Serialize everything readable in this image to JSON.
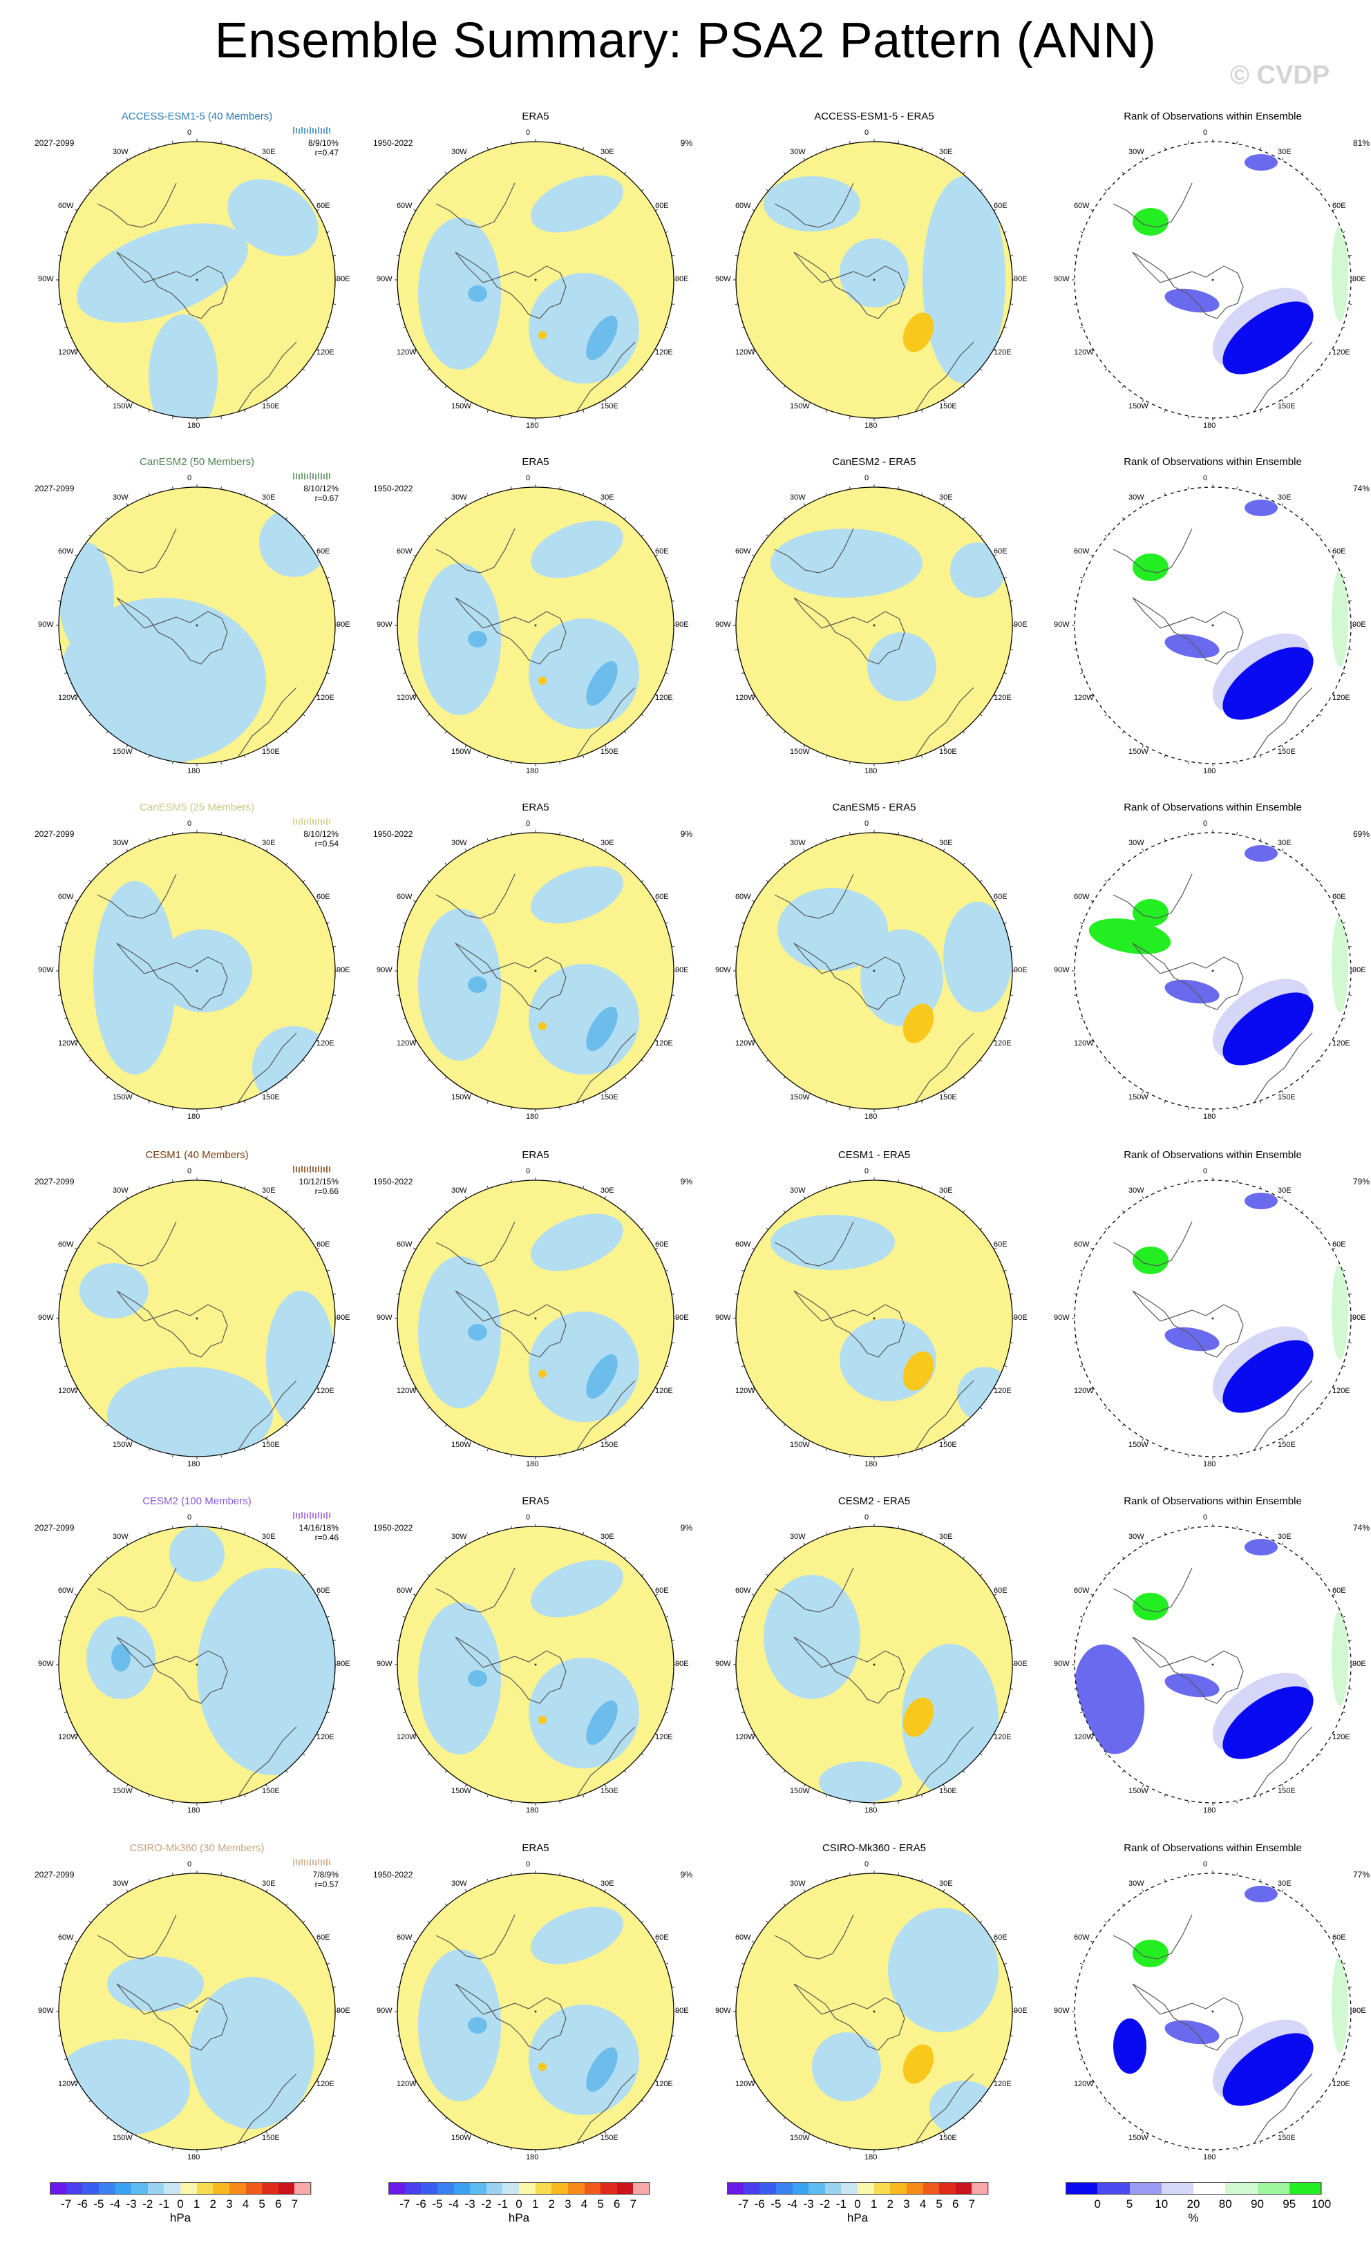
{
  "page": {
    "title": "Ensemble Summary: PSA2 Pattern (ANN)",
    "watermark": "© CVDP"
  },
  "colors": {
    "pos_fill": "#fbf38d",
    "neg_fill": "#b3def2",
    "neg_strong": "#6cbcec",
    "pos_strong": "#f8c81c",
    "rank_low_strong": "#0a0af2",
    "rank_low_mid": "#6a6aee",
    "rank_low_light": "#d6d6f8",
    "rank_high_light": "#d2f8d2",
    "rank_high_mid": "#9ef79e",
    "rank_high_strong": "#22ee22",
    "coast": "#555555",
    "border": "#000000"
  },
  "longitude_labels": [
    "0",
    "30E",
    "60E",
    "90E",
    "120E",
    "150E",
    "180",
    "150W",
    "120W",
    "90W",
    "60W",
    "30W"
  ],
  "rows": [
    {
      "model": {
        "title": "ACCESS-ESM1-5 (40 Members)",
        "title_color": "#2a7ab2",
        "years": "2027-2099",
        "pct": "8/9/10%",
        "r": "r=0.47"
      },
      "obs": {
        "title": "ERA5",
        "years": "1950-2022",
        "pct": "9%"
      },
      "diff": {
        "title": "ACCESS-ESM1-5 - ERA5"
      },
      "rank": {
        "title": "Rank of Observations within Ensemble",
        "pct": "81%"
      }
    },
    {
      "model": {
        "title": "CanESM2 (50 Members)",
        "title_color": "#4e8050",
        "years": "2027-2099",
        "pct": "8/10/12%",
        "r": "r=0.67"
      },
      "obs": {
        "title": "ERA5",
        "years": "1950-2022",
        "pct": ""
      },
      "diff": {
        "title": "CanESM2 - ERA5"
      },
      "rank": {
        "title": "Rank of Observations within Ensemble",
        "pct": "74%"
      }
    },
    {
      "model": {
        "title": "CanESM5 (25 Members)",
        "title_color": "#c9c883",
        "years": "2027-2099",
        "pct": "8/10/12%",
        "r": "r=0.54"
      },
      "obs": {
        "title": "ERA5",
        "years": "1950-2022",
        "pct": "9%"
      },
      "diff": {
        "title": "CanESM5 - ERA5"
      },
      "rank": {
        "title": "Rank of Observations within Ensemble",
        "pct": "69%"
      }
    },
    {
      "model": {
        "title": "CESM1 (40 Members)",
        "title_color": "#7a3a0c",
        "years": "2027-2099",
        "pct": "10/12/15%",
        "r": "r=0.66"
      },
      "obs": {
        "title": "ERA5",
        "years": "1950-2022",
        "pct": "9%"
      },
      "diff": {
        "title": "CESM1 - ERA5"
      },
      "rank": {
        "title": "Rank of Observations within Ensemble",
        "pct": "79%"
      }
    },
    {
      "model": {
        "title": "CESM2 (100 Members)",
        "title_color": "#8a57e0",
        "years": "2027-2099",
        "pct": "14/16/18%",
        "r": "r=0.46"
      },
      "obs": {
        "title": "ERA5",
        "years": "1950-2022",
        "pct": "9%"
      },
      "diff": {
        "title": "CESM2 - ERA5"
      },
      "rank": {
        "title": "Rank of Observations within Ensemble",
        "pct": "74%"
      }
    },
    {
      "model": {
        "title": "CSIRO-Mk360 (30 Members)",
        "title_color": "#c8a07c",
        "years": "2027-2099",
        "pct": "7/8/9%",
        "r": "r=0.57"
      },
      "obs": {
        "title": "ERA5",
        "years": "1950-2022",
        "pct": "9%"
      },
      "diff": {
        "title": "CSIRO-Mk360 - ERA5"
      },
      "rank": {
        "title": "Rank of Observations within Ensemble",
        "pct": "77%"
      }
    }
  ],
  "colorbar_hpa": {
    "ticks": [
      "-7",
      "-6",
      "-5",
      "-4",
      "-3",
      "-2",
      "-1",
      "0",
      "1",
      "2",
      "3",
      "4",
      "5",
      "6",
      "7"
    ],
    "colors": [
      "#6a1ae8",
      "#4a3ef0",
      "#3a5cf0",
      "#3a82f2",
      "#3aa2f2",
      "#5cbcf2",
      "#9ad2f2",
      "#c8e6f2",
      "#fbf7a8",
      "#f8dc50",
      "#f8b820",
      "#f88a18",
      "#f05a1a",
      "#e02a1a",
      "#c8141a",
      "#f8a8a8"
    ],
    "units": "hPa"
  },
  "colorbar_rank": {
    "ticks": [
      "0",
      "5",
      "10",
      "20",
      "80",
      "90",
      "95",
      "100"
    ],
    "colors": [
      "#0a0af2",
      "#4a4af0",
      "#9a9af2",
      "#d6d6f8",
      "#ffffff",
      "#d2f8d2",
      "#9ef79e",
      "#22ee22"
    ],
    "units": "%"
  }
}
